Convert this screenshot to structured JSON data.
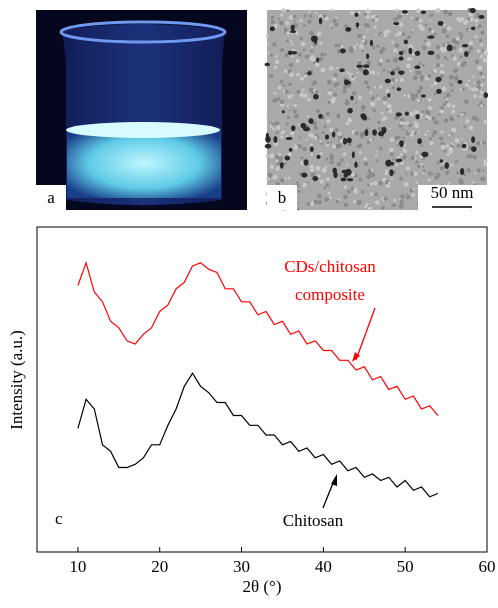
{
  "panel_a": {
    "label": "a"
  },
  "panel_b": {
    "label": "b",
    "scale_bar": "50 nm"
  },
  "chart_data": {
    "type": "line",
    "panel_label": "c",
    "x_label": "2θ (°)",
    "y_label": "Intensity (a.u.)",
    "xlim": [
      5,
      60
    ],
    "xticks": [
      10,
      20,
      30,
      40,
      50,
      60
    ],
    "ylim": [
      0,
      100
    ],
    "annotations": [
      "CDs/chitosan",
      "composite",
      "Chitosan"
    ],
    "x": [
      10,
      11,
      12,
      13,
      14,
      15,
      16,
      17,
      18,
      19,
      20,
      21,
      22,
      23,
      24,
      25,
      26,
      27,
      28,
      29,
      30,
      31,
      32,
      33,
      34,
      35,
      36,
      37,
      38,
      39,
      40,
      41,
      42,
      43,
      44,
      45,
      46,
      47,
      48,
      49,
      50,
      51,
      52,
      53,
      54
    ],
    "series": [
      {
        "color": "#ff0000",
        "values": [
          82,
          89,
          80,
          77,
          71,
          69,
          65,
          64,
          67,
          69,
          74,
          76,
          81,
          83,
          88,
          89,
          87,
          86,
          81,
          81,
          77,
          77,
          73,
          74,
          70,
          71,
          67,
          68,
          64,
          65,
          62,
          62,
          59,
          59,
          56,
          57,
          53,
          54,
          50,
          51,
          47,
          48,
          44,
          45,
          42
        ]
      },
      {
        "color": "#000000",
        "values": [
          38,
          47,
          44,
          33,
          31,
          26,
          26,
          27,
          29,
          33,
          33,
          39,
          44,
          51,
          55,
          51,
          49,
          46,
          46,
          42,
          42,
          39,
          39,
          36,
          36,
          33,
          34,
          31,
          32,
          29,
          30,
          27,
          28,
          25,
          26,
          23,
          24,
          22,
          23,
          20,
          22,
          19,
          20,
          17,
          18
        ]
      }
    ]
  }
}
